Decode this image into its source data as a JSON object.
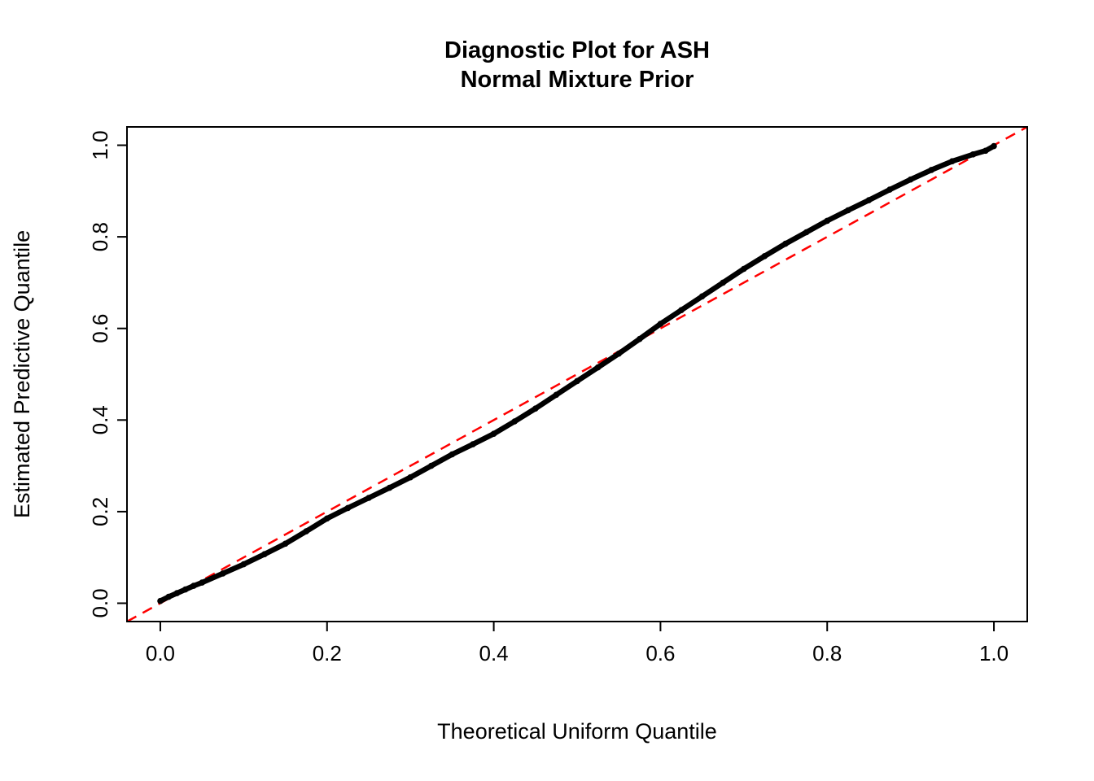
{
  "chart": {
    "title_line1": "Diagnostic Plot for ASH",
    "title_line2": "Normal Mixture Prior",
    "xlabel": "Theoretical Uniform Quantile",
    "ylabel": "Estimated Predictive Quantile"
  },
  "chart_data": {
    "type": "scatter",
    "title": "Diagnostic Plot for ASH\nNormal Mixture Prior",
    "xlabel": "Theoretical Uniform Quantile",
    "ylabel": "Estimated Predictive Quantile",
    "xlim": [
      -0.04,
      1.04
    ],
    "ylim": [
      -0.04,
      1.04
    ],
    "xticks": [
      0.0,
      0.2,
      0.4,
      0.6,
      0.8,
      1.0
    ],
    "yticks": [
      0.0,
      0.2,
      0.4,
      0.6,
      0.8,
      1.0
    ],
    "grid": false,
    "legend": null,
    "colors": {
      "points": "#000000",
      "reference_line": "#ff0000",
      "axis": "#000000"
    },
    "series": [
      {
        "name": "estimated-predictive-quantiles",
        "type": "points",
        "color": "#000000",
        "x": [
          0.0,
          0.01,
          0.02,
          0.03,
          0.04,
          0.05,
          0.075,
          0.1,
          0.125,
          0.15,
          0.175,
          0.2,
          0.225,
          0.25,
          0.275,
          0.3,
          0.325,
          0.35,
          0.375,
          0.4,
          0.425,
          0.45,
          0.475,
          0.5,
          0.525,
          0.55,
          0.575,
          0.6,
          0.625,
          0.65,
          0.675,
          0.7,
          0.725,
          0.75,
          0.775,
          0.8,
          0.825,
          0.85,
          0.875,
          0.9,
          0.925,
          0.95,
          0.975,
          0.99,
          1.0
        ],
        "y": [
          0.005,
          0.014,
          0.022,
          0.03,
          0.038,
          0.045,
          0.065,
          0.085,
          0.107,
          0.13,
          0.157,
          0.185,
          0.208,
          0.23,
          0.252,
          0.275,
          0.3,
          0.325,
          0.347,
          0.37,
          0.397,
          0.425,
          0.455,
          0.485,
          0.515,
          0.545,
          0.577,
          0.61,
          0.64,
          0.67,
          0.7,
          0.73,
          0.758,
          0.785,
          0.81,
          0.835,
          0.858,
          0.88,
          0.903,
          0.925,
          0.946,
          0.965,
          0.98,
          0.988,
          0.998
        ]
      },
      {
        "name": "identity-reference-line",
        "type": "dashed-line",
        "color": "#ff0000",
        "x": [
          -0.04,
          1.04
        ],
        "y": [
          -0.04,
          1.04
        ]
      }
    ]
  }
}
